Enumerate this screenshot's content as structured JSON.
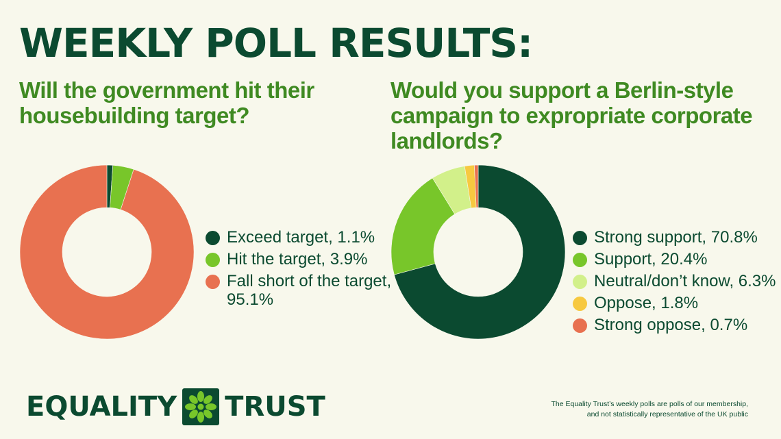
{
  "title": "WEEKLY POLL RESULTS:",
  "chart_data": [
    {
      "type": "pie",
      "title": "Will the government hit their housebuilding target?",
      "categories": [
        "Exceed target",
        "Hit the target",
        "Fall short of the target"
      ],
      "values": [
        1.1,
        3.9,
        95.1
      ],
      "labels": [
        "Exceed target, 1.1%",
        "Hit the target, 3.9%",
        "Fall short of the target, 95.1%"
      ],
      "colors": [
        "#0b4a30",
        "#78c62a",
        "#e87150"
      ],
      "donut": true,
      "legend": "right"
    },
    {
      "type": "pie",
      "title": "Would you support a Berlin-style campaign to expropriate corporate landlords?",
      "categories": [
        "Strong support",
        "Support",
        "Neutral/don’t know",
        "Oppose",
        "Strong oppose"
      ],
      "values": [
        70.8,
        20.4,
        6.3,
        1.8,
        0.7
      ],
      "labels": [
        "Strong support, 70.8%",
        "Support, 20.4%",
        "Neutral/don’t know, 6.3%",
        "Oppose, 1.8%",
        "Strong oppose, 0.7%"
      ],
      "colors": [
        "#0b4a30",
        "#78c62a",
        "#d2f08a",
        "#f7c940",
        "#e87150"
      ],
      "donut": true,
      "legend": "right"
    }
  ],
  "logo": {
    "left": "EQUALITY",
    "right": "TRUST",
    "mark_color": "#78c62a",
    "mark_bg": "#0b4a30"
  },
  "footnote": {
    "line1": "The Equality Trust’s weekly polls are polls of our membership,",
    "line2": "and not statistically representative of the UK public"
  }
}
